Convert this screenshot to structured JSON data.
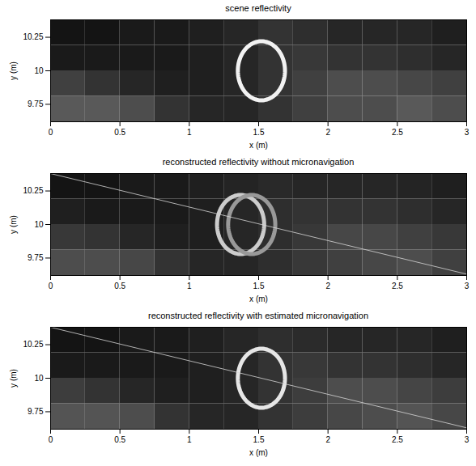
{
  "chart_data": [
    {
      "type": "heatmap",
      "title": "scene reflectivity",
      "x_label": "x (m)",
      "y_label": "y (m)",
      "xlim": [
        0,
        3
      ],
      "ylim": [
        9.62,
        10.38
      ],
      "xticks": [
        0,
        0.5,
        1,
        1.5,
        2,
        2.5,
        3
      ],
      "yticks": [
        9.75,
        10,
        10.25
      ],
      "zlim": [
        0,
        1
      ],
      "cells": {
        "x_edges": [
          0,
          0.25,
          0.5,
          0.75,
          1,
          1.25,
          1.5,
          1.75,
          2,
          2.25,
          2.5,
          2.75,
          3
        ],
        "y_edges": [
          9.62,
          9.81,
          10.0,
          10.19,
          10.38
        ],
        "values": [
          [
            0.35,
            0.35,
            0.3,
            0.2,
            0.15,
            0.15,
            0.2,
            0.25,
            0.3,
            0.3,
            0.35,
            0.3
          ],
          [
            0.25,
            0.2,
            0.15,
            0.12,
            0.12,
            0.15,
            0.2,
            0.25,
            0.3,
            0.3,
            0.28,
            0.25
          ],
          [
            0.1,
            0.1,
            0.1,
            0.1,
            0.12,
            0.15,
            0.2,
            0.22,
            0.2,
            0.2,
            0.18,
            0.15
          ],
          [
            0.08,
            0.08,
            0.1,
            0.1,
            0.12,
            0.15,
            0.2,
            0.18,
            0.15,
            0.15,
            0.15,
            0.12
          ]
        ]
      },
      "rings": [
        {
          "cx": 1.52,
          "cy": 10.0,
          "rx": 0.17,
          "ry": 0.22,
          "value": 0.95
        }
      ],
      "lines": []
    },
    {
      "type": "heatmap",
      "title": "reconstructed reflectivity without micronavigation",
      "x_label": "x (m)",
      "y_label": "y (m)",
      "xlim": [
        0,
        3
      ],
      "ylim": [
        9.62,
        10.38
      ],
      "xticks": [
        0,
        0.5,
        1,
        1.5,
        2,
        2.5,
        3
      ],
      "yticks": [
        9.75,
        10,
        10.25
      ],
      "zlim": [
        0,
        1
      ],
      "cells": {
        "x_edges": [
          0,
          0.25,
          0.5,
          0.75,
          1,
          1.25,
          1.5,
          1.75,
          2,
          2.25,
          2.5,
          2.75,
          3
        ],
        "y_edges": [
          9.62,
          9.81,
          10.0,
          10.19,
          10.38
        ],
        "values": [
          [
            0.3,
            0.3,
            0.28,
            0.2,
            0.15,
            0.15,
            0.18,
            0.22,
            0.25,
            0.28,
            0.3,
            0.25
          ],
          [
            0.22,
            0.2,
            0.15,
            0.12,
            0.12,
            0.15,
            0.18,
            0.22,
            0.28,
            0.28,
            0.25,
            0.22
          ],
          [
            0.12,
            0.1,
            0.1,
            0.1,
            0.12,
            0.15,
            0.18,
            0.2,
            0.2,
            0.2,
            0.18,
            0.15
          ],
          [
            0.08,
            0.08,
            0.1,
            0.1,
            0.12,
            0.14,
            0.16,
            0.15,
            0.15,
            0.15,
            0.14,
            0.12
          ]
        ]
      },
      "rings": [
        {
          "cx": 1.37,
          "cy": 10.0,
          "rx": 0.17,
          "ry": 0.22,
          "value": 0.8
        },
        {
          "cx": 1.45,
          "cy": 10.0,
          "rx": 0.17,
          "ry": 0.22,
          "value": 0.6
        }
      ],
      "lines": [
        {
          "x": [
            0,
            3
          ],
          "y": [
            10.38,
            9.63
          ],
          "color": "#d8d8d8"
        }
      ]
    },
    {
      "type": "heatmap",
      "title": "reconstructed reflectivity with estimated micronavigation",
      "x_label": "x (m)",
      "y_label": "y (m)",
      "xlim": [
        0,
        3
      ],
      "ylim": [
        9.62,
        10.38
      ],
      "xticks": [
        0,
        0.5,
        1,
        1.5,
        2,
        2.5,
        3
      ],
      "yticks": [
        9.75,
        10,
        10.25
      ],
      "zlim": [
        0,
        1
      ],
      "cells": {
        "x_edges": [
          0,
          0.25,
          0.5,
          0.75,
          1,
          1.25,
          1.5,
          1.75,
          2,
          2.25,
          2.5,
          2.75,
          3
        ],
        "y_edges": [
          9.62,
          9.81,
          10.0,
          10.19,
          10.38
        ],
        "values": [
          [
            0.33,
            0.33,
            0.3,
            0.2,
            0.15,
            0.15,
            0.2,
            0.24,
            0.28,
            0.3,
            0.33,
            0.28
          ],
          [
            0.24,
            0.2,
            0.15,
            0.12,
            0.12,
            0.15,
            0.2,
            0.24,
            0.3,
            0.3,
            0.27,
            0.24
          ],
          [
            0.1,
            0.1,
            0.1,
            0.1,
            0.12,
            0.15,
            0.2,
            0.22,
            0.2,
            0.2,
            0.18,
            0.15
          ],
          [
            0.08,
            0.08,
            0.1,
            0.1,
            0.12,
            0.15,
            0.18,
            0.17,
            0.15,
            0.15,
            0.15,
            0.12
          ]
        ]
      },
      "rings": [
        {
          "cx": 1.52,
          "cy": 10.0,
          "rx": 0.17,
          "ry": 0.22,
          "value": 0.9
        }
      ],
      "lines": [
        {
          "x": [
            0,
            3
          ],
          "y": [
            10.38,
            9.63
          ],
          "color": "#d8d8d8"
        }
      ]
    }
  ]
}
